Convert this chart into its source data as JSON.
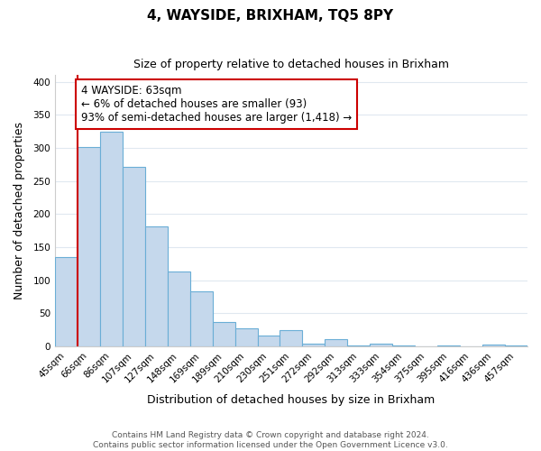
{
  "title": "4, WAYSIDE, BRIXHAM, TQ5 8PY",
  "subtitle": "Size of property relative to detached houses in Brixham",
  "xlabel": "Distribution of detached houses by size in Brixham",
  "ylabel": "Number of detached properties",
  "bar_labels": [
    "45sqm",
    "66sqm",
    "86sqm",
    "107sqm",
    "127sqm",
    "148sqm",
    "169sqm",
    "189sqm",
    "210sqm",
    "230sqm",
    "251sqm",
    "272sqm",
    "292sqm",
    "313sqm",
    "333sqm",
    "354sqm",
    "375sqm",
    "395sqm",
    "416sqm",
    "436sqm",
    "457sqm"
  ],
  "bar_values": [
    135,
    302,
    325,
    271,
    182,
    113,
    83,
    37,
    27,
    17,
    25,
    5,
    11,
    1,
    5,
    1,
    0,
    2,
    0,
    3,
    2
  ],
  "bar_color": "#c5d8ec",
  "bar_edge_color": "#6aaed6",
  "property_line_color": "#cc0000",
  "property_line_x": 0.5,
  "annotation_text": "4 WAYSIDE: 63sqm\n← 6% of detached houses are smaller (93)\n93% of semi-detached houses are larger (1,418) →",
  "annotation_box_color": "#ffffff",
  "annotation_box_edge": "#cc0000",
  "ylim": [
    0,
    410
  ],
  "yticks": [
    0,
    50,
    100,
    150,
    200,
    250,
    300,
    350,
    400
  ],
  "footer_line1": "Contains HM Land Registry data © Crown copyright and database right 2024.",
  "footer_line2": "Contains public sector information licensed under the Open Government Licence v3.0.",
  "bg_color": "#ffffff",
  "plot_bg_color": "#ffffff",
  "grid_color": "#e0e8f0",
  "title_fontsize": 11,
  "subtitle_fontsize": 9,
  "ylabel_fontsize": 9,
  "xlabel_fontsize": 9,
  "tick_fontsize": 7.5,
  "footer_fontsize": 6.5,
  "annotation_fontsize": 8.5
}
